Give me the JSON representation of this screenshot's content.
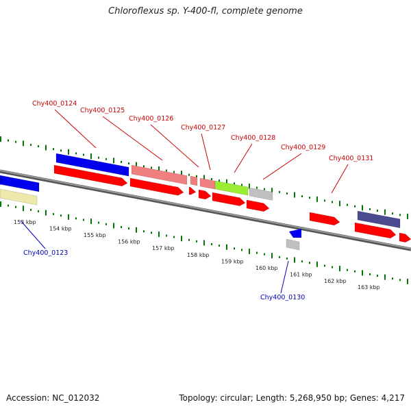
{
  "title": "Chloroflexus sp. Y-400-fl, complete genome",
  "footer": {
    "accession": "Accession: NC_012032",
    "summary": "Topology: circular; Length: 5,268,950 bp; Genes: 4,217"
  },
  "colors": {
    "backbone": "#777777",
    "tick": "#007700",
    "label_top": "#cc0000",
    "label_bottom": "#0000bb",
    "cds": "#ff0000",
    "blue": "#0000ee",
    "salmon": "#f08080",
    "lime": "#99ee33",
    "grey": "#c0c0c0",
    "purple": "#4a4a90",
    "khaki": "#eee8aa"
  },
  "ticks": [
    {
      "label": "153 kbp"
    },
    {
      "label": "154 kbp"
    },
    {
      "label": "155 kbp"
    },
    {
      "label": "156 kbp"
    },
    {
      "label": "157 kbp"
    },
    {
      "label": "158 kbp"
    },
    {
      "label": "159 kbp"
    },
    {
      "label": "160 kbp"
    },
    {
      "label": "161 kbp"
    },
    {
      "label": "162 kbp"
    },
    {
      "label": "163 kbp"
    }
  ],
  "gene_labels_top": [
    {
      "label": "Chy400_0124"
    },
    {
      "label": "Chy400_0125"
    },
    {
      "label": "Chy400_0126"
    },
    {
      "label": "Chy400_0127"
    },
    {
      "label": "Chy400_0128"
    },
    {
      "label": "Chy400_0129"
    },
    {
      "label": "Chy400_0131"
    }
  ],
  "gene_labels_bottom": [
    {
      "label": "Chy400_0123"
    },
    {
      "label": "Chy400_0130"
    }
  ]
}
